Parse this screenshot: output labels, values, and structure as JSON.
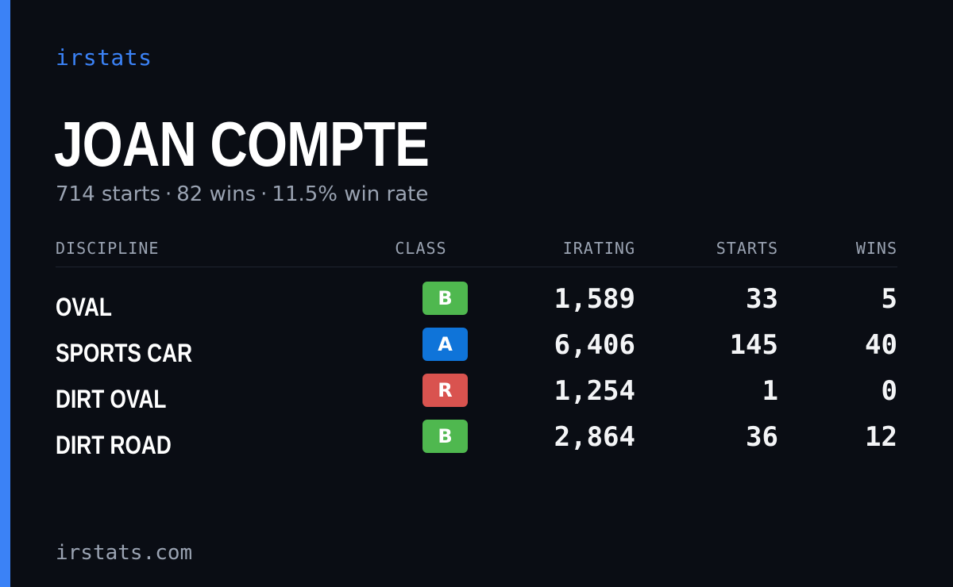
{
  "brand": "irstats",
  "driver": {
    "name": "JOAN COMPTE",
    "starts_text": "714 starts",
    "wins_text": "82 wins",
    "win_rate_text": "11.5% win rate",
    "separator": "·"
  },
  "table": {
    "headers": {
      "discipline": "DISCIPLINE",
      "class": "CLASS",
      "irating": "IRATING",
      "starts": "STARTS",
      "wins": "WINS"
    },
    "rows": [
      {
        "discipline": "OVAL",
        "class": "B",
        "class_color": "#4fb84f",
        "irating": "1,589",
        "starts": "33",
        "wins": "5"
      },
      {
        "discipline": "SPORTS CAR",
        "class": "A",
        "class_color": "#0f74d9",
        "irating": "6,406",
        "starts": "145",
        "wins": "40"
      },
      {
        "discipline": "DIRT OVAL",
        "class": "R",
        "class_color": "#d9534f",
        "irating": "1,254",
        "starts": "1",
        "wins": "0"
      },
      {
        "discipline": "DIRT ROAD",
        "class": "B",
        "class_color": "#4fb84f",
        "irating": "2,864",
        "starts": "36",
        "wins": "12"
      }
    ]
  },
  "footer": "irstats.com",
  "colors": {
    "background": "#0a0d14",
    "accent": "#3b82f6",
    "muted_text": "#9aa3b2"
  }
}
